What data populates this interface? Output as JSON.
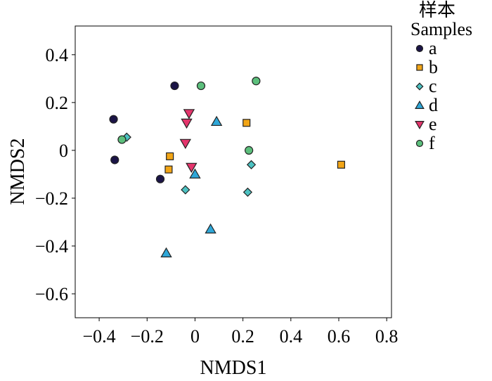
{
  "chart_data": {
    "type": "scatter",
    "xlabel": "NMDS1",
    "ylabel": "NMDS2",
    "xlim": [
      -0.5,
      0.82
    ],
    "ylim": [
      -0.7,
      0.52
    ],
    "xticks": [
      -0.4,
      -0.2,
      0,
      0.2,
      0.4,
      0.6,
      0.8
    ],
    "xtick_labels": [
      "−0.4",
      "−0.2",
      "0",
      "0.2",
      "0.4",
      "0.6",
      "0.8"
    ],
    "yticks": [
      0.4,
      0.2,
      0,
      -0.2,
      -0.4,
      -0.6
    ],
    "ytick_labels": [
      "0.4",
      "0.2",
      "0",
      "−0.2",
      "−0.4",
      "−0.6"
    ],
    "grid": false,
    "legend": {
      "title_line1": "样本",
      "title_line2": "Samples",
      "placement": "right"
    },
    "series": [
      {
        "name": "a",
        "marker": "circle",
        "color": "#1b1446",
        "points": [
          [
            -0.34,
            0.13
          ],
          [
            -0.335,
            -0.04
          ],
          [
            -0.085,
            0.27
          ],
          [
            -0.145,
            -0.12
          ]
        ]
      },
      {
        "name": "b",
        "marker": "square",
        "color": "#f2a516",
        "points": [
          [
            -0.105,
            -0.025
          ],
          [
            -0.11,
            -0.08
          ],
          [
            0.215,
            0.115
          ],
          [
            0.61,
            -0.06
          ]
        ]
      },
      {
        "name": "c",
        "marker": "diamond",
        "color": "#4cc1c1",
        "points": [
          [
            -0.285,
            0.055
          ],
          [
            -0.04,
            -0.165
          ],
          [
            0.235,
            -0.06
          ],
          [
            0.22,
            -0.175
          ]
        ]
      },
      {
        "name": "d",
        "marker": "triangle-up",
        "color": "#2fa7d8",
        "points": [
          [
            0.09,
            0.12
          ],
          [
            0.0,
            -0.1
          ],
          [
            0.065,
            -0.33
          ],
          [
            -0.12,
            -0.43
          ]
        ]
      },
      {
        "name": "e",
        "marker": "triangle-down",
        "color": "#e4356c",
        "points": [
          [
            -0.025,
            0.155
          ],
          [
            -0.035,
            0.115
          ],
          [
            -0.04,
            0.03
          ],
          [
            -0.015,
            -0.07
          ]
        ]
      },
      {
        "name": "f",
        "marker": "circle",
        "color": "#5cbf7c",
        "points": [
          [
            0.025,
            0.27
          ],
          [
            0.255,
            0.29
          ],
          [
            -0.305,
            0.045
          ],
          [
            0.225,
            0.0
          ]
        ]
      }
    ]
  }
}
